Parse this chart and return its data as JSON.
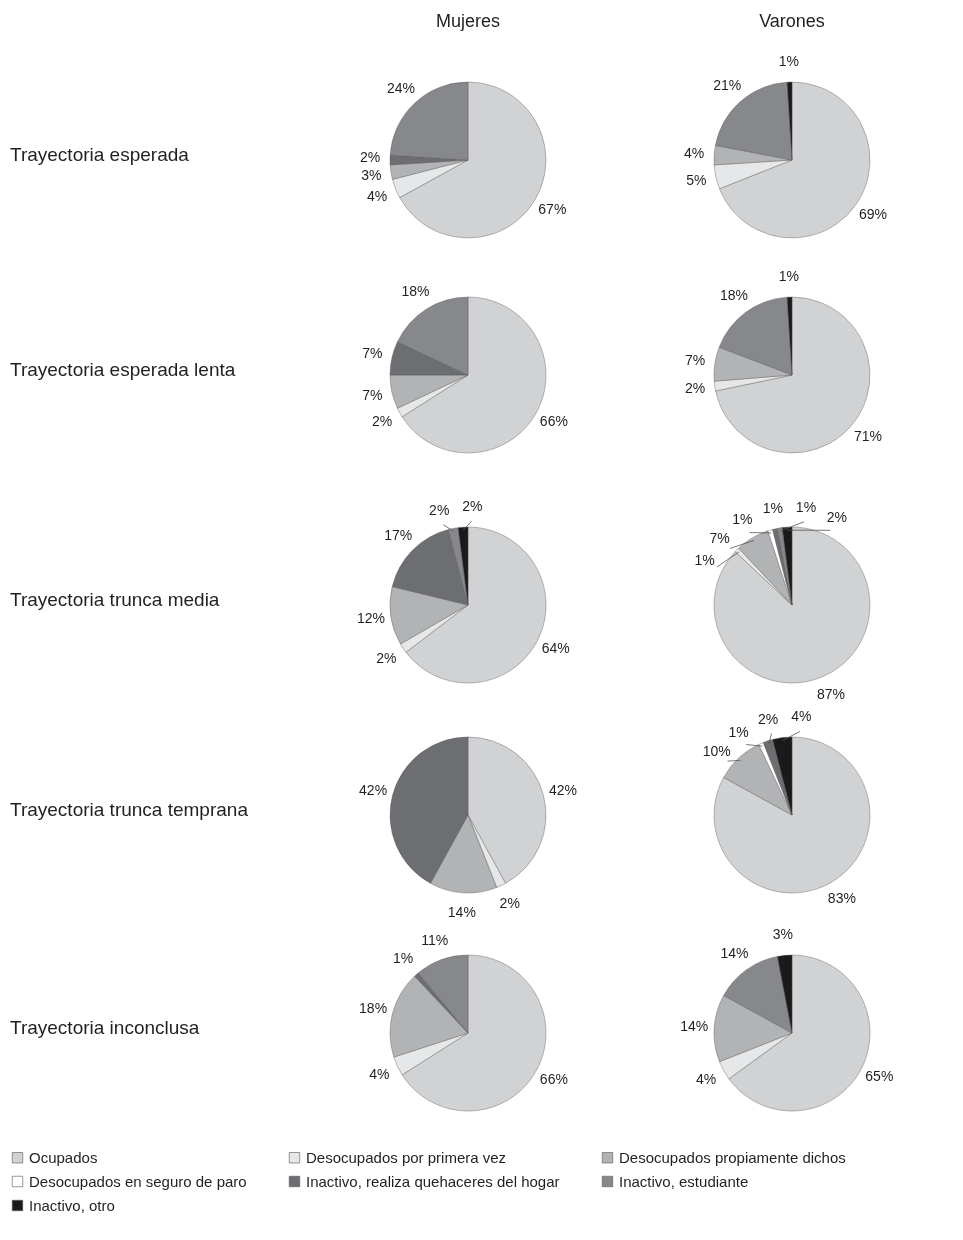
{
  "chart_data": [
    {
      "type": "pie",
      "legend": "bottom",
      "title": "Mujeres",
      "annotations": [
        "Trayectoria esperada"
      ],
      "categories": [
        "Ocupados",
        "Desocupados por primera vez",
        "Desocupados propiamente dichos",
        "Desocupados en seguro de paro",
        "Inactivo, realiza quehaceres del hogar",
        "Inactivo, estudiante",
        "Inactivo, otro"
      ],
      "values": [
        67,
        4,
        3,
        null,
        2,
        24,
        null
      ],
      "value_labels": [
        "67%",
        "4%",
        "3%",
        null,
        "2%",
        "24%",
        null
      ],
      "colors": [
        "#d1d2d4",
        "#e6e7e8",
        "#b2b3b5",
        "#ffffff",
        "#6d6e71",
        "#87888b",
        "#1a1a1a"
      ]
    },
    {
      "type": "pie",
      "title": "Varones",
      "categories": [
        null,
        null,
        null,
        null,
        null,
        null,
        null
      ],
      "values": [
        69,
        5,
        4,
        null,
        null,
        21,
        1
      ],
      "value_labels": [
        "69%",
        "5%",
        "4%",
        null,
        null,
        "21%",
        "1%"
      ],
      "colors": [
        "#d1d2d4",
        "#e6e7e8",
        "#b2b3b5",
        null,
        null,
        "#87888b",
        "#1a1a1a"
      ]
    },
    {
      "type": "pie",
      "annotations": [
        "Trayectoria esperada lenta"
      ],
      "categories": [
        null,
        null,
        null,
        null,
        null,
        null,
        null
      ],
      "values": [
        66,
        2,
        7,
        null,
        7,
        18,
        null
      ],
      "value_labels": [
        "66%",
        "2%",
        "7%",
        null,
        "7%",
        "18%",
        null
      ],
      "colors": [
        "#d1d2d4",
        "#e6e7e8",
        "#b2b3b5",
        null,
        "#6d6e71",
        "#87888b",
        null
      ]
    },
    {
      "type": "pie",
      "categories": [
        null,
        null,
        null,
        null,
        null,
        null,
        null
      ],
      "values": [
        71,
        2,
        7,
        null,
        null,
        18,
        1
      ],
      "value_labels": [
        "71%",
        "2%",
        "7%",
        null,
        null,
        "18%",
        "1%"
      ],
      "colors": [
        "#d1d2d4",
        "#e6e7e8",
        "#b2b3b5",
        null,
        null,
        "#87888b",
        "#1a1a1a"
      ]
    },
    {
      "type": "pie",
      "annotations": [
        "Trayectoria trunca media"
      ],
      "categories": [
        null,
        null,
        null,
        null,
        null,
        null,
        null
      ],
      "values": [
        64,
        2,
        12,
        null,
        17,
        2,
        2
      ],
      "value_labels": [
        "64%",
        "2%",
        "12%",
        null,
        "17%",
        "2%",
        "2%"
      ],
      "colors": [
        "#d1d2d4",
        "#e6e7e8",
        "#b2b3b5",
        null,
        "#6d6e71",
        "#87888b",
        "#1a1a1a"
      ]
    },
    {
      "type": "pie",
      "categories": [
        null,
        null,
        null,
        null,
        null,
        null,
        null
      ],
      "values": [
        87,
        1,
        7,
        1,
        1,
        1,
        2
      ],
      "value_labels": [
        "87%",
        "1%",
        "7%",
        "1%",
        "1%",
        "1%",
        "2%"
      ],
      "colors": [
        "#d1d2d4",
        "#e6e7e8",
        "#b2b3b5",
        "#ffffff",
        "#6d6e71",
        "#87888b",
        "#1a1a1a"
      ]
    },
    {
      "type": "pie",
      "annotations": [
        "Trayectoria trunca temprana"
      ],
      "categories": [
        null,
        null,
        null,
        null,
        null,
        null,
        null
      ],
      "values": [
        42,
        2,
        14,
        null,
        42,
        null,
        null
      ],
      "value_labels": [
        "42%",
        "2%",
        "14%",
        null,
        "42%",
        null,
        null
      ],
      "colors": [
        "#d1d2d4",
        "#e6e7e8",
        "#b2b3b5",
        null,
        "#6d6e71",
        null,
        null
      ]
    },
    {
      "type": "pie",
      "categories": [
        null,
        null,
        null,
        null,
        null,
        null,
        null
      ],
      "values": [
        83,
        null,
        10,
        1,
        2,
        null,
        4
      ],
      "value_labels": [
        "83%",
        null,
        "10%",
        "1%",
        "2%",
        null,
        "4%"
      ],
      "colors": [
        "#d1d2d4",
        null,
        "#b2b3b5",
        "#ffffff",
        "#6d6e71",
        null,
        "#1a1a1a"
      ]
    },
    {
      "type": "pie",
      "annotations": [
        "Trayectoria inconclusa"
      ],
      "categories": [
        null,
        null,
        null,
        null,
        null,
        null,
        null
      ],
      "values": [
        66,
        4,
        18,
        null,
        1,
        11,
        null
      ],
      "value_labels": [
        "66%",
        "4%",
        "18%",
        null,
        "1%",
        "11%",
        null
      ],
      "colors": [
        "#d1d2d4",
        "#e6e7e8",
        "#b2b3b5",
        null,
        "#6d6e71",
        "#87888b",
        null
      ]
    },
    {
      "type": "pie",
      "categories": [
        null,
        null,
        null,
        null,
        null,
        null,
        null
      ],
      "values": [
        65,
        4,
        14,
        null,
        null,
        14,
        3
      ],
      "value_labels": [
        "65%",
        "4%",
        "14%",
        null,
        null,
        "14%",
        "3%"
      ],
      "colors": [
        "#d1d2d4",
        "#e6e7e8",
        "#b2b3b5",
        null,
        null,
        "#87888b",
        "#1a1a1a"
      ]
    }
  ]
}
